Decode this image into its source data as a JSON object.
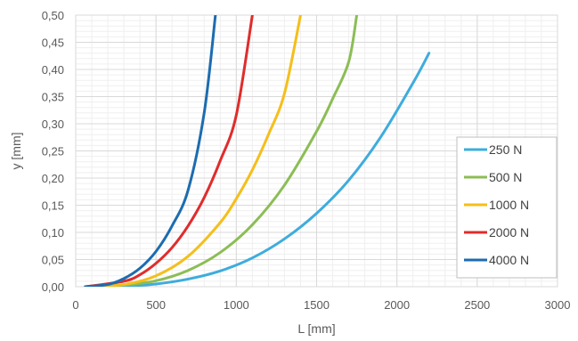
{
  "chart_data": {
    "type": "line",
    "title": "",
    "xlabel": "L [mm]",
    "ylabel": "y [mm]",
    "xlim": [
      0,
      3000
    ],
    "ylim": [
      0,
      0.5
    ],
    "x_ticks": [
      "0",
      "500",
      "1000",
      "1500",
      "2000",
      "2500",
      "3000"
    ],
    "y_ticks": [
      "0,00",
      "0,05",
      "0,10",
      "0,15",
      "0,20",
      "0,25",
      "0,30",
      "0,35",
      "0,40",
      "0,45",
      "0,50"
    ],
    "grid": true,
    "legend_position": "right",
    "series": [
      {
        "name": "250 N",
        "color": "#3eacdd",
        "x": [
          60,
          300,
          500,
          700,
          900,
          1100,
          1300,
          1500,
          1700,
          1900,
          2100,
          2200
        ],
        "y": [
          0.0,
          0.001,
          0.005,
          0.014,
          0.029,
          0.053,
          0.088,
          0.135,
          0.196,
          0.276,
          0.375,
          0.43
        ]
      },
      {
        "name": "500 N",
        "color": "#8cbd55",
        "x": [
          60,
          300,
          500,
          700,
          900,
          1100,
          1300,
          1500,
          1600,
          1700,
          1750
        ],
        "y": [
          0.0,
          0.003,
          0.011,
          0.03,
          0.063,
          0.114,
          0.187,
          0.286,
          0.346,
          0.414,
          0.5
        ]
      },
      {
        "name": "1000 N",
        "color": "#f5be1a",
        "x": [
          60,
          300,
          500,
          700,
          900,
          1000,
          1100,
          1200,
          1300,
          1400
        ],
        "y": [
          0.0,
          0.004,
          0.02,
          0.056,
          0.118,
          0.162,
          0.215,
          0.28,
          0.356,
          0.5
        ]
      },
      {
        "name": "2000 N",
        "color": "#e02c2c",
        "x": [
          60,
          300,
          400,
          500,
          600,
          700,
          800,
          900,
          1000,
          1100
        ],
        "y": [
          0.0,
          0.01,
          0.022,
          0.043,
          0.072,
          0.112,
          0.164,
          0.232,
          0.316,
          0.5
        ]
      },
      {
        "name": "4000 N",
        "color": "#1c6cb0",
        "x": [
          60,
          200,
          300,
          400,
          500,
          600,
          700,
          800,
          870
        ],
        "y": [
          0.0,
          0.004,
          0.015,
          0.034,
          0.065,
          0.112,
          0.178,
          0.32,
          0.5
        ]
      }
    ]
  }
}
